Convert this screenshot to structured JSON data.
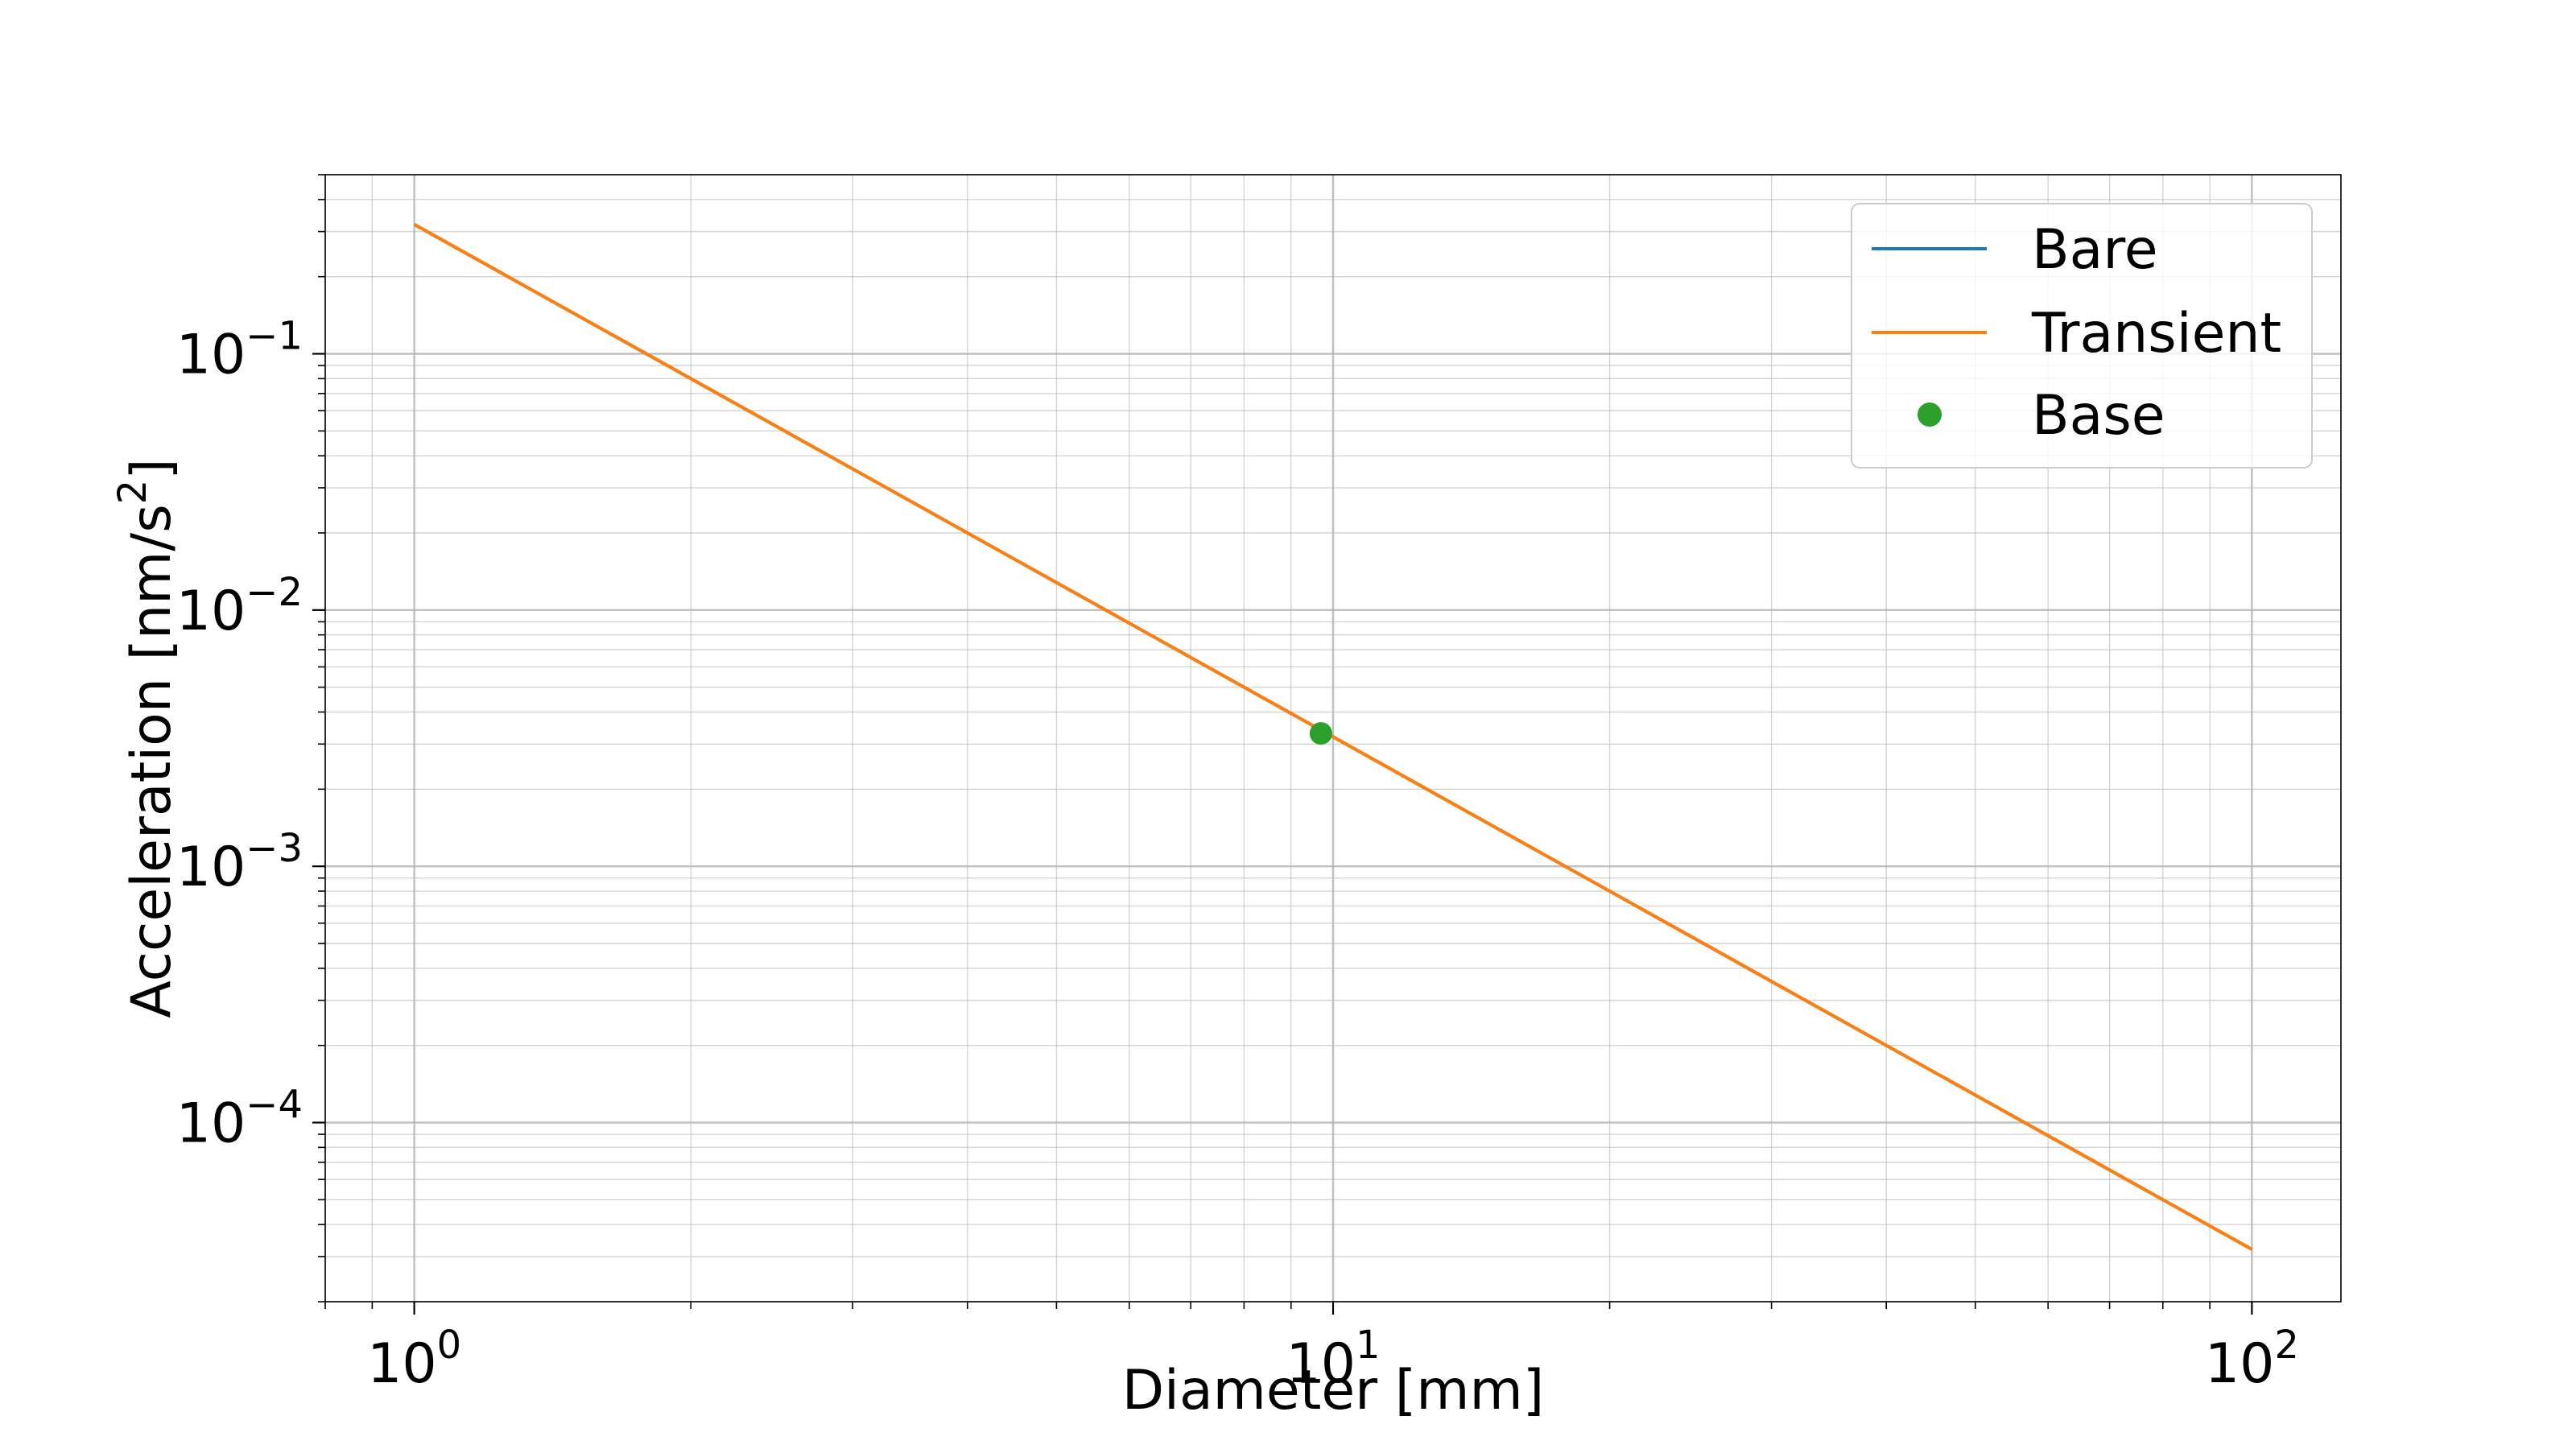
{
  "chart_data": {
    "type": "line",
    "xlabel": "Diameter [mm]",
    "ylabel": {
      "prefix": "Acceleration [nm/s",
      "sup": "2",
      "suffix": "]"
    },
    "x_scale": "log",
    "y_scale": "log",
    "xlim": [
      0.8,
      125
    ],
    "ylim": [
      2e-05,
      0.5
    ],
    "x_ticks": [
      {
        "value": 1,
        "base": "10",
        "exp": "0"
      },
      {
        "value": 10,
        "base": "10",
        "exp": "1"
      },
      {
        "value": 100,
        "base": "10",
        "exp": "2"
      }
    ],
    "y_ticks": [
      {
        "value": 0.0001,
        "base": "10",
        "exp": "−4"
      },
      {
        "value": 0.001,
        "base": "10",
        "exp": "−3"
      },
      {
        "value": 0.01,
        "base": "10",
        "exp": "−2"
      },
      {
        "value": 0.1,
        "base": "10",
        "exp": "−1"
      }
    ],
    "grid": true,
    "legend_position": "top-right",
    "series": [
      {
        "name": "Bare",
        "kind": "line",
        "color": "#1f77b4",
        "x": [
          1,
          100
        ],
        "y": [
          0.32,
          3.2e-05
        ]
      },
      {
        "name": "Transient",
        "kind": "line",
        "color": "#ff7f0e",
        "x": [
          1,
          100
        ],
        "y": [
          0.32,
          3.2e-05
        ]
      },
      {
        "name": "Base",
        "kind": "marker",
        "color": "#2ca02c",
        "x": [
          9.7
        ],
        "y": [
          0.0033
        ]
      }
    ]
  }
}
